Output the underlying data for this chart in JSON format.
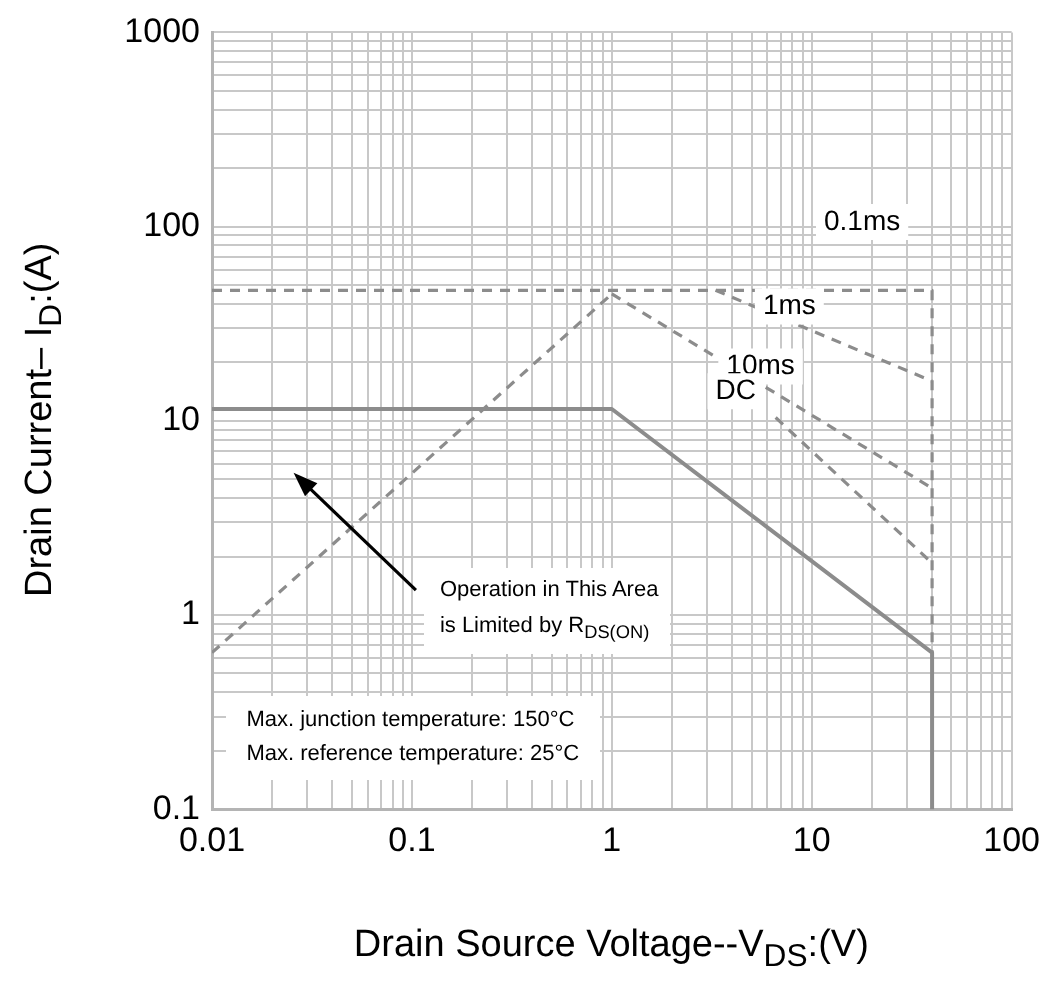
{
  "chart_data": {
    "type": "line",
    "xlabel": "Drain Source Voltage--V$_{DS}$:(V)",
    "ylabel": "Drain Current– I$_{D}$:(A)",
    "log": "xy",
    "xlim": [
      0.01,
      100
    ],
    "ylim": [
      0.1,
      1000
    ],
    "xticks": [
      0.01,
      0.1,
      1,
      10,
      100
    ],
    "yticks": [
      0.1,
      1,
      10,
      100,
      1000
    ],
    "grid": true,
    "legend": false,
    "marker": "none",
    "series": [
      {
        "color": "#8c8c8c",
        "line_style": "dashed",
        "x": [
          0.01,
          1
        ],
        "values": [
          0.64,
          45
        ]
      },
      {
        "name": "0.1ms",
        "color": "#8c8c8c",
        "line_style": "dashed",
        "x": [
          0.01,
          40,
          40
        ],
        "values": [
          47,
          47,
          0.64
        ]
      },
      {
        "name": "1ms",
        "color": "#8c8c8c",
        "line_style": "dashed",
        "x": [
          3.3,
          40
        ],
        "values": [
          47,
          16
        ]
      },
      {
        "name": "10ms",
        "color": "#8c8c8c",
        "line_style": "dashed",
        "x": [
          1,
          40
        ],
        "values": [
          45,
          4.5
        ]
      },
      {
        "name": "DC",
        "color": "#8c8c8c",
        "line_style": "dashed",
        "x": [
          6.6,
          40
        ],
        "values": [
          10.4,
          1.85
        ]
      },
      {
        "color": "#8c8c8c",
        "line_style": "solid",
        "x": [
          0.01,
          1,
          40,
          40
        ],
        "values": [
          11.5,
          11.5,
          0.64,
          0.1
        ]
      }
    ],
    "annotations": [
      "Operation in This Area\nis Limited by R$_{DS(ON)}$",
      "Max. junction temperature: 150°C",
      "Max. reference temperature: 25°C"
    ]
  }
}
